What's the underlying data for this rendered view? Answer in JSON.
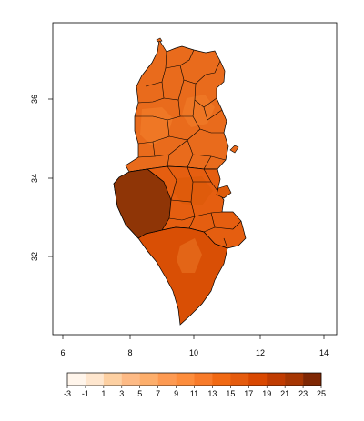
{
  "map": {
    "type": "raster-choropleth",
    "region": "Tunisia",
    "x_ticks": [
      "6",
      "8",
      "10",
      "12",
      "14"
    ],
    "y_ticks": [
      "32",
      "34",
      "36"
    ],
    "x_range": [
      5.7,
      14.3
    ],
    "y_range": [
      30.2,
      38.0
    ],
    "tick_x_values": [
      6,
      8,
      10,
      12,
      14
    ],
    "tick_y_values": [
      32,
      34,
      36
    ]
  },
  "legend": {
    "breaks": [
      "-3",
      "-1",
      "1",
      "3",
      "5",
      "7",
      "9",
      "11",
      "13",
      "15",
      "17",
      "19",
      "21",
      "23",
      "25"
    ],
    "colors": [
      "#fff5eb",
      "#fee6ce",
      "#fdd0a2",
      "#fdba85",
      "#fdae6b",
      "#fd9a52",
      "#fd8d3c",
      "#f87b2a",
      "#f16913",
      "#e55b0d",
      "#d94801",
      "#c03c02",
      "#a63603",
      "#7f2704"
    ]
  },
  "colors": {
    "north": "#e96b1c",
    "central": "#e55e10",
    "south": "#d94f05",
    "southwest": "#8f3506",
    "border": "#000000"
  }
}
